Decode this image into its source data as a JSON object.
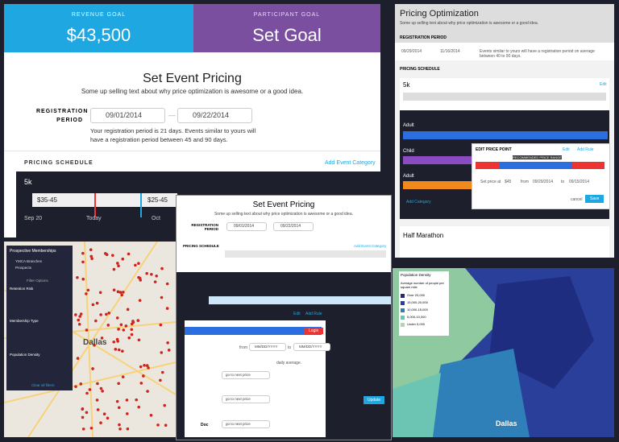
{
  "revenue_goal": {
    "label": "REVENUE GOAL",
    "value": "$43,500"
  },
  "participant_goal": {
    "label": "PARTICIPANT GOAL",
    "value": "Set Goal"
  },
  "main": {
    "title": "Set Event Pricing",
    "subtitle": "Some up selling text about why price optimization is awesome or a good idea.",
    "registration_label": "REGISTRATION PERIOD",
    "start_date": "09/01/2014",
    "end_date": "09/22/2014",
    "note": "Your registration period is 21 days. Events similar to yours will have a registration period between 45 and 90 days.",
    "pricing_schedule": "PRICING SCHEDULE",
    "add_category": "Add Event Category",
    "category": "5k",
    "price_ranges": [
      "$35-45",
      "$25-45"
    ],
    "timeline": [
      "Sep 20",
      "Today",
      "Oct"
    ]
  },
  "optimization": {
    "title": "Pricing Optimization",
    "subtitle": "Some up selling text about why price optimization is awesome or a good idea.",
    "registration_label": "REGISTRATION PERIOD",
    "start_date": "09/29/2014",
    "end_date": "11/16/2014",
    "note": "Events similar to yours will have a registration period on average between 40 to 90 days.",
    "pricing_schedule": "PRICING SCHEDULE",
    "category": "5k",
    "edit": "Edit",
    "rows": [
      "Adult",
      "Child",
      "Adult"
    ],
    "add_category": "Add Category",
    "half_marathon": "Half Marathon",
    "popup": {
      "title": "EDIT PRICE POINT",
      "edit": "Edit",
      "add_rule": "Add Rule",
      "range": "RECOMMENDED PRICE RANGE",
      "set_price": "Set price at",
      "price": "$45",
      "from": "from",
      "from_date": "09/29/2014",
      "to": "to",
      "to_date": "09/15/2014",
      "cancel": "cancel",
      "save": "Save"
    }
  },
  "overlay": {
    "title": "Set Event Pricing",
    "subtitle": "Some up selling text about why price optimization is awesome or a good idea.",
    "registration_label": "REGISTRATION PERIOD",
    "start_date": "09/01/2014",
    "end_date": "09/22/2014",
    "pricing_schedule": "PRICING SCHEDULE",
    "add_category": "Add Event Category",
    "edit": "Edit",
    "add_rule": "Add Rule",
    "login": "Login",
    "from": "from",
    "to": "to",
    "date_placeholder": "MM/DD/YYYY",
    "daily_average": "daily average.",
    "next_price": "go to next price",
    "update": "Update",
    "doc": "Doc"
  },
  "map_memberships": {
    "title": "Prospective Memberships",
    "legend": [
      "YMCA Branches",
      "Prospects"
    ],
    "filter": "Filter Options",
    "sections": [
      "Retention Risk",
      "Membership Type",
      "Population Density"
    ],
    "city": "Dallas",
    "clear": "Clear all filters"
  },
  "map_density": {
    "title": "Population Density",
    "legend_title": "Average number of people per square mile",
    "legend": [
      "Over 20,000",
      "15,000-20,000",
      "10,000-15,000",
      "5,000-10,000",
      "Under 5,000"
    ],
    "city": "Dallas"
  }
}
